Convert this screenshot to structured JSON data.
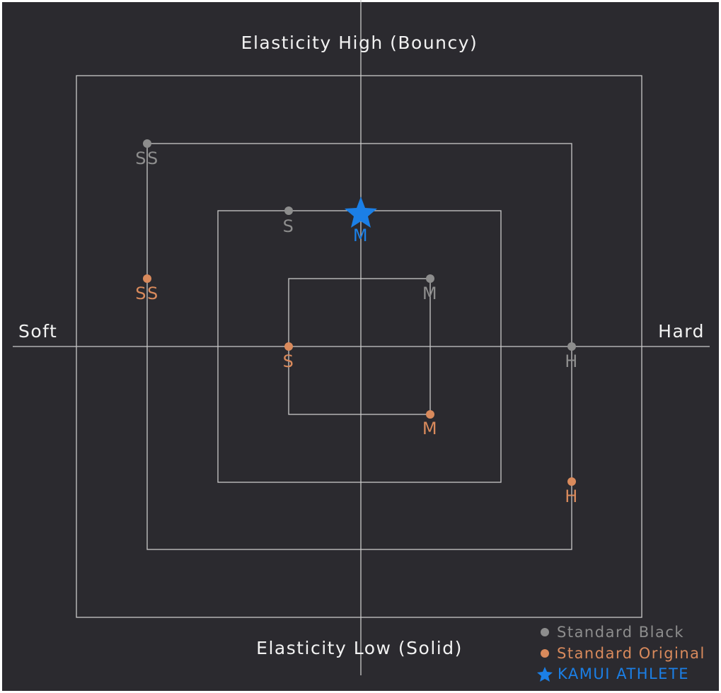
{
  "axes": {
    "top": "Elasticity High (Bouncy)",
    "bottom": "Elasticity Low (Solid)",
    "left": "Soft",
    "right": "Hard"
  },
  "points": [
    {
      "label": "SS"
    },
    {
      "label": "S"
    },
    {
      "label": "M"
    },
    {
      "label": "H"
    },
    {
      "label": "SS"
    },
    {
      "label": "S"
    },
    {
      "label": "M"
    },
    {
      "label": "H"
    },
    {
      "label": "M"
    }
  ],
  "legend": [
    "Standard Black",
    "Standard Original",
    "KAMUI ATHLETE"
  ]
}
